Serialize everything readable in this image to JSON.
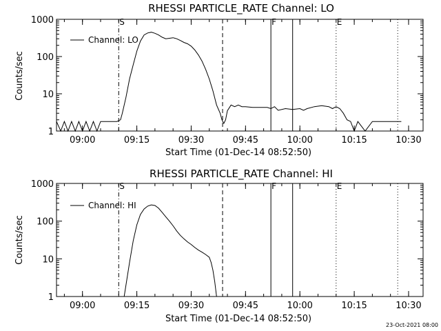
{
  "chart_data": [
    {
      "type": "line",
      "title": "RHESSI PARTICLE_RATE Channel: LO",
      "xlabel": "Start Time (01-Dec-14 08:52:50)",
      "ylabel": "Counts/sec",
      "yscale": "log",
      "xlim": [
        "08:52:50",
        "10:34:00"
      ],
      "ylim": [
        1,
        1000
      ],
      "xticks": [
        "09:00",
        "09:15",
        "09:30",
        "09:45",
        "10:00",
        "10:15",
        "10:30"
      ],
      "yticks": [
        "1",
        "10",
        "100",
        "1000"
      ],
      "grid": false,
      "legend": "top-left",
      "series": [
        {
          "name": "Channel: LO",
          "x": [
            "08:52:50",
            "08:54:00",
            "08:55:00",
            "08:56:00",
            "08:57:00",
            "08:58:00",
            "08:59:00",
            "09:00:00",
            "09:01:00",
            "09:02:00",
            "09:03:00",
            "09:04:00",
            "09:05:00",
            "09:06:00",
            "09:07:00",
            "09:08:00",
            "09:09:00",
            "09:09:30",
            "09:10:30",
            "09:11:00",
            "09:12:00",
            "09:13:00",
            "09:14:00",
            "09:15:00",
            "09:16:00",
            "09:17:00",
            "09:18:00",
            "09:19:00",
            "09:20:00",
            "09:21:00",
            "09:22:00",
            "09:23:00",
            "09:24:00",
            "09:25:00",
            "09:26:00",
            "09:27:00",
            "09:28:00",
            "09:29:00",
            "09:30:00",
            "09:31:00",
            "09:32:00",
            "09:33:00",
            "09:34:00",
            "09:35:00",
            "09:36:00",
            "09:37:00",
            "09:38:00",
            "09:38:30",
            "09:39:00",
            "09:39:30",
            "09:40:00",
            "09:41:00",
            "09:42:00",
            "09:43:00",
            "09:44:00",
            "09:45:00",
            "09:47:00",
            "09:49:00",
            "09:51:00",
            "09:52:00",
            "09:53:00",
            "09:54:00",
            "09:56:00",
            "09:58:00",
            "10:00:00",
            "10:01:00",
            "10:02:00",
            "10:04:00",
            "10:06:00",
            "10:08:00",
            "10:09:00",
            "10:10:00",
            "10:11:00",
            "10:12:00",
            "10:13:00",
            "10:14:00",
            "10:15:00",
            "10:16:00",
            "10:18:00",
            "10:20:00",
            "10:22:00",
            "10:24:00",
            "10:26:00",
            "10:28:00"
          ],
          "values": [
            1.8,
            1,
            1.8,
            1,
            1.8,
            1,
            1.8,
            1,
            1.8,
            1,
            1.8,
            1,
            1.8,
            1.8,
            1.8,
            1.8,
            1.8,
            1.8,
            2,
            3,
            8,
            25,
            60,
            140,
            260,
            380,
            430,
            450,
            420,
            380,
            330,
            300,
            310,
            320,
            300,
            270,
            240,
            220,
            190,
            150,
            110,
            75,
            45,
            25,
            12,
            5,
            3,
            2,
            1.6,
            2,
            3.5,
            5,
            4.5,
            5,
            4.5,
            4.5,
            4.3,
            4.3,
            4.3,
            4.0,
            4.5,
            3.6,
            4.0,
            3.8,
            4.0,
            3.6,
            4.0,
            4.5,
            4.8,
            4.5,
            4.0,
            4.5,
            4.0,
            3.0,
            2.0,
            1.8,
            1.0,
            1.8,
            1.0,
            1.8,
            1.8,
            1.8,
            1.8,
            1.8
          ]
        }
      ],
      "markers": [
        {
          "label": "S",
          "time": "09:10:00",
          "style": "dash-dot"
        },
        {
          "label": "",
          "time": "09:38:40",
          "style": "dashed"
        },
        {
          "label": "F",
          "time": "09:52:00",
          "style": "solid"
        },
        {
          "label": "",
          "time": "09:58:00",
          "style": "solid"
        },
        {
          "label": "E",
          "time": "10:10:00",
          "style": "dotted"
        },
        {
          "label": "",
          "time": "10:27:00",
          "style": "dotted"
        }
      ]
    },
    {
      "type": "line",
      "title": "RHESSI PARTICLE_RATE Channel: HI",
      "xlabel": "Start Time (01-Dec-14 08:52:50)",
      "ylabel": "Counts/sec",
      "yscale": "log",
      "xlim": [
        "08:52:50",
        "10:34:00"
      ],
      "ylim": [
        1,
        1000
      ],
      "xticks": [
        "09:00",
        "09:15",
        "09:30",
        "09:45",
        "10:00",
        "10:15",
        "10:30"
      ],
      "yticks": [
        "1",
        "10",
        "100",
        "1000"
      ],
      "grid": false,
      "legend": "top-left",
      "series": [
        {
          "name": "Channel: HI",
          "x": [
            "09:11:30",
            "09:12:00",
            "09:13:00",
            "09:14:00",
            "09:15:00",
            "09:16:00",
            "09:17:00",
            "09:18:00",
            "09:19:00",
            "09:20:00",
            "09:21:00",
            "09:22:00",
            "09:23:00",
            "09:24:00",
            "09:25:00",
            "09:26:00",
            "09:27:00",
            "09:28:00",
            "09:29:00",
            "09:30:00",
            "09:31:00",
            "09:32:00",
            "09:33:00",
            "09:34:00",
            "09:35:00",
            "09:35:30",
            "09:36:00",
            "09:36:30",
            "09:37:00"
          ],
          "values": [
            1,
            2,
            8,
            30,
            80,
            150,
            210,
            250,
            270,
            260,
            220,
            170,
            130,
            100,
            75,
            55,
            42,
            34,
            28,
            24,
            20,
            17,
            15,
            13,
            11,
            8,
            5,
            2.5,
            1
          ]
        }
      ],
      "markers": [
        {
          "label": "S",
          "time": "09:10:00",
          "style": "dash-dot"
        },
        {
          "label": "",
          "time": "09:38:40",
          "style": "dashed"
        },
        {
          "label": "F",
          "time": "09:52:00",
          "style": "solid"
        },
        {
          "label": "",
          "time": "09:58:00",
          "style": "solid"
        },
        {
          "label": "E",
          "time": "10:10:00",
          "style": "dotted"
        },
        {
          "label": "",
          "time": "10:27:00",
          "style": "dotted"
        }
      ]
    }
  ],
  "footer": {
    "timestamp": "23-Oct-2021 08:00"
  }
}
